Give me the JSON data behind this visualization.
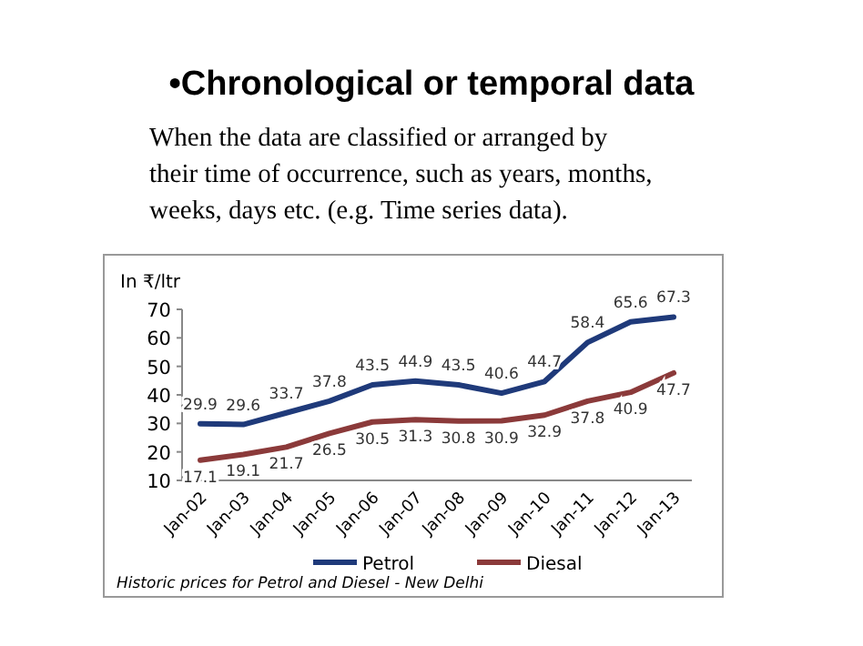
{
  "chart_data": {
    "type": "line",
    "title": "•Chronological or  temporal data",
    "subtitle": "When the data are classified or arranged by their time of occurrence, such as years, months, weeks, days etc. (e.g. Time series data).",
    "ylabel": "In ₹/ltr",
    "categories": [
      "Jan-02",
      "Jan-03",
      "Jan-04",
      "Jan-05",
      "Jan-06",
      "Jan-07",
      "Jan-08",
      "Jan-09",
      "Jan-10",
      "Jan-11",
      "Jan-12",
      "Jan-13"
    ],
    "series": [
      {
        "name": "Petrol",
        "color": "#1f3a7a",
        "values": [
          29.9,
          29.6,
          33.7,
          37.8,
          43.5,
          44.9,
          43.5,
          40.6,
          44.7,
          58.4,
          65.6,
          67.3
        ]
      },
      {
        "name": "Diesal",
        "color": "#8b3a3a",
        "values": [
          17.1,
          19.1,
          21.7,
          26.5,
          30.5,
          31.3,
          30.8,
          30.9,
          32.9,
          37.8,
          40.9,
          47.7
        ]
      }
    ],
    "ylim": [
      10,
      70
    ],
    "yticks": [
      10,
      20,
      30,
      40,
      50,
      60,
      70
    ],
    "data_labels": true,
    "legend": "bottom",
    "marker": "none",
    "grid": false,
    "annotations": [
      "Historic prices for Petrol and Diesel - New Delhi"
    ]
  }
}
